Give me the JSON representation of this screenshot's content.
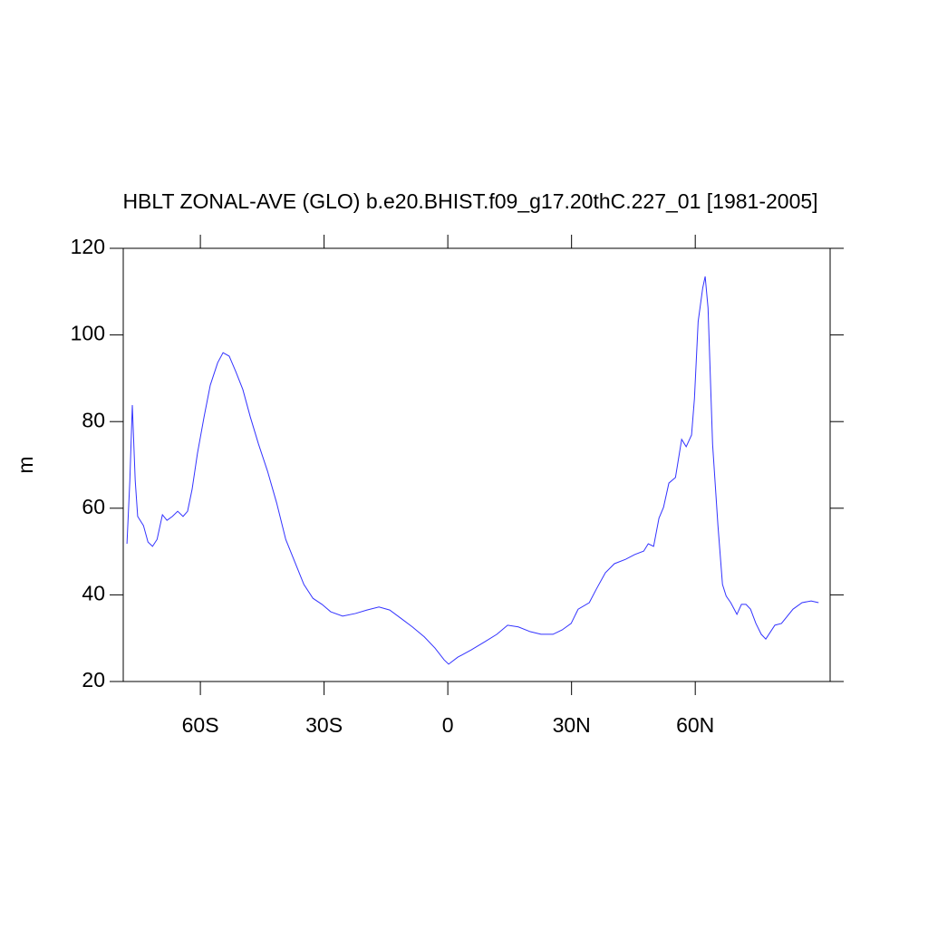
{
  "chart_data": {
    "type": "line",
    "title": "HBLT ZONAL-AVE (GLO) b.e20.BHIST.f09_g17.20thC.227_01 [1981-2005]",
    "y_label": "m",
    "xlim": [
      -78.7,
      92.7
    ],
    "ylim": [
      20,
      120
    ],
    "xticks": [
      {
        "value": -60,
        "label": "60S"
      },
      {
        "value": -30,
        "label": "30S"
      },
      0,
      {
        "value": 30,
        "label": "30N"
      },
      {
        "value": 60,
        "label": "60N"
      }
    ],
    "yticks": [
      20,
      40,
      60,
      80,
      100,
      120
    ],
    "x": [
      -77.8,
      -77.1,
      -76.5,
      -75.8,
      -75.2,
      -73.8,
      -72.7,
      -71.6,
      -70.5,
      -69.2,
      -68.1,
      -66.8,
      -65.5,
      -64.2,
      -63.1,
      -62.0,
      -60.7,
      -59.1,
      -57.6,
      -55.8,
      -54.5,
      -53.0,
      -51.4,
      -49.7,
      -47.9,
      -45.9,
      -43.7,
      -41.5,
      -39.3,
      -37.1,
      -34.9,
      -32.7,
      -30.5,
      -28.4,
      -25.5,
      -22.4,
      -19.6,
      -16.7,
      -14.1,
      -11.4,
      -8.6,
      -5.7,
      -3.1,
      -0.9,
      0.2,
      2.4,
      5.7,
      9.0,
      11.9,
      14.5,
      17.1,
      20.0,
      22.6,
      25.5,
      27.7,
      29.9,
      31.6,
      34.3,
      36.0,
      38.2,
      40.4,
      43.1,
      45.3,
      47.5,
      48.6,
      49.9,
      51.2,
      52.3,
      53.6,
      55.2,
      56.7,
      57.8,
      59.1,
      59.8,
      60.7,
      61.8,
      62.4,
      63.1,
      64.2,
      65.5,
      66.6,
      67.5,
      68.6,
      70.1,
      71.2,
      72.3,
      73.4,
      74.7,
      76.0,
      77.1,
      79.3,
      80.9,
      83.7,
      85.9,
      88.1,
      89.9
    ],
    "series": [
      {
        "color": "#3333ff",
        "values": [
          51.8,
          66.4,
          83.8,
          66.4,
          58.1,
          56.0,
          52.2,
          51.2,
          52.8,
          58.5,
          57.2,
          58.1,
          59.3,
          58.1,
          59.3,
          64.4,
          72.7,
          81.1,
          88.4,
          93.6,
          95.9,
          95.1,
          91.5,
          87.4,
          81.1,
          74.8,
          68.5,
          61.2,
          52.8,
          47.6,
          42.4,
          39.2,
          37.8,
          36.1,
          35.1,
          35.7,
          36.5,
          37.2,
          36.5,
          34.6,
          32.6,
          30.3,
          27.7,
          25.0,
          24.0,
          25.6,
          27.3,
          29.2,
          30.9,
          33.0,
          32.6,
          31.5,
          30.9,
          30.9,
          31.9,
          33.4,
          36.7,
          38.2,
          41.3,
          45.1,
          47.2,
          48.2,
          49.3,
          50.1,
          51.8,
          51.2,
          57.7,
          60.2,
          65.8,
          67.1,
          75.9,
          74.2,
          76.9,
          85.3,
          103.1,
          110.8,
          113.5,
          106.2,
          74.8,
          56.0,
          42.4,
          39.7,
          38.2,
          35.5,
          37.8,
          37.8,
          36.7,
          33.4,
          30.9,
          29.8,
          33.0,
          33.4,
          36.7,
          38.2,
          38.6,
          38.2
        ]
      }
    ]
  }
}
